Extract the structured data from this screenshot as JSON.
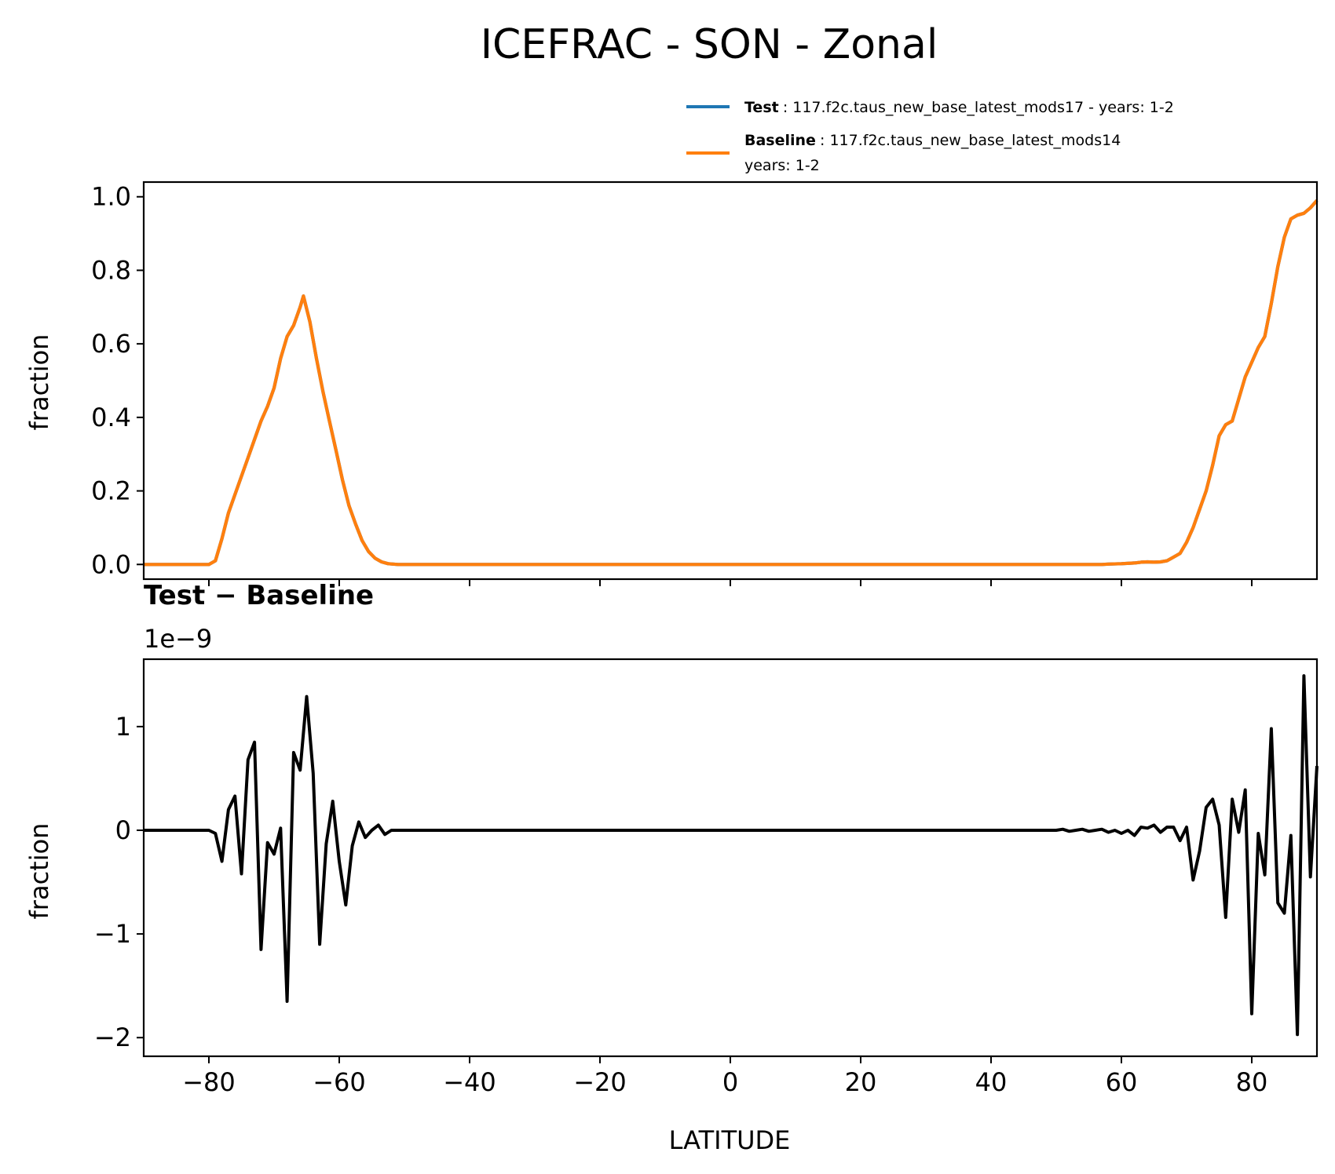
{
  "chart_data": [
    {
      "type": "line",
      "title": "ICEFRAC - SON - Zonal",
      "xlabel": "",
      "ylabel": "fraction",
      "xlim": [
        -90,
        90
      ],
      "ylim": [
        -0.04,
        1.04
      ],
      "yticks": [
        0.0,
        0.2,
        0.4,
        0.6,
        0.8,
        1.0
      ],
      "ytick_labels": [
        "0.0",
        "0.2",
        "0.4",
        "0.6",
        "0.8",
        "1.0"
      ],
      "xticks": [
        -80,
        -60,
        -40,
        -20,
        0,
        20,
        40,
        60,
        80
      ],
      "legend_position": "top-right",
      "series": [
        {
          "name": "Test",
          "legend_label": "Test",
          "legend_text": ": 117.f2c.taus_new_base_latest_mods17 - years: 1-2",
          "color": "#1f77b4",
          "x": [
            -90,
            -80,
            -79,
            -78,
            -77,
            -76,
            -75,
            -74,
            -73,
            -72,
            -71,
            -70,
            -69,
            -68,
            -67,
            -66,
            -65.5,
            -64.5,
            -63.5,
            -62.5,
            -61.5,
            -60.5,
            -59.5,
            -58.5,
            -57.5,
            -56.5,
            -55.5,
            -54.5,
            -53.5,
            -52.5,
            -51,
            0,
            50,
            57,
            58,
            60,
            62,
            63,
            64,
            65,
            66,
            67,
            68,
            69,
            70,
            71,
            72,
            73,
            74,
            75,
            76,
            77,
            78,
            79,
            80,
            81,
            82,
            83,
            84,
            85,
            86,
            87,
            88,
            89,
            90
          ],
          "values": [
            0,
            0,
            0.01,
            0.07,
            0.14,
            0.19,
            0.24,
            0.29,
            0.34,
            0.39,
            0.43,
            0.48,
            0.56,
            0.62,
            0.65,
            0.7,
            0.73,
            0.66,
            0.56,
            0.47,
            0.39,
            0.31,
            0.23,
            0.16,
            0.11,
            0.065,
            0.035,
            0.017,
            0.007,
            0.002,
            0,
            0,
            0,
            0,
            0.001,
            0.002,
            0.004,
            0.006,
            0.007,
            0.006,
            0.007,
            0.01,
            0.02,
            0.03,
            0.06,
            0.1,
            0.15,
            0.2,
            0.27,
            0.35,
            0.38,
            0.39,
            0.45,
            0.51,
            0.55,
            0.59,
            0.62,
            0.71,
            0.81,
            0.89,
            0.94,
            0.95,
            0.955,
            0.97,
            0.99
          ]
        },
        {
          "name": "Baseline",
          "legend_label": "Baseline",
          "legend_text": ": 117.f2c.taus_new_base_latest_mods14",
          "legend_text_line2": "years: 1-2",
          "color": "#ff7f0e",
          "x": [
            -90,
            -80,
            -79,
            -78,
            -77,
            -76,
            -75,
            -74,
            -73,
            -72,
            -71,
            -70,
            -69,
            -68,
            -67,
            -66,
            -65.5,
            -64.5,
            -63.5,
            -62.5,
            -61.5,
            -60.5,
            -59.5,
            -58.5,
            -57.5,
            -56.5,
            -55.5,
            -54.5,
            -53.5,
            -52.5,
            -51,
            0,
            50,
            57,
            58,
            60,
            62,
            63,
            64,
            65,
            66,
            67,
            68,
            69,
            70,
            71,
            72,
            73,
            74,
            75,
            76,
            77,
            78,
            79,
            80,
            81,
            82,
            83,
            84,
            85,
            86,
            87,
            88,
            89,
            90
          ],
          "values": [
            0,
            0,
            0.01,
            0.07,
            0.14,
            0.19,
            0.24,
            0.29,
            0.34,
            0.39,
            0.43,
            0.48,
            0.56,
            0.62,
            0.65,
            0.7,
            0.73,
            0.66,
            0.56,
            0.47,
            0.39,
            0.31,
            0.23,
            0.16,
            0.11,
            0.065,
            0.035,
            0.017,
            0.007,
            0.002,
            0,
            0,
            0,
            0,
            0.001,
            0.002,
            0.004,
            0.006,
            0.007,
            0.006,
            0.007,
            0.01,
            0.02,
            0.03,
            0.06,
            0.1,
            0.15,
            0.2,
            0.27,
            0.35,
            0.38,
            0.39,
            0.45,
            0.51,
            0.55,
            0.59,
            0.62,
            0.71,
            0.81,
            0.89,
            0.94,
            0.95,
            0.955,
            0.97,
            0.99
          ]
        }
      ]
    },
    {
      "type": "line",
      "title": "Test − Baseline",
      "offset_label": "1e−9",
      "xlabel": "LATITUDE",
      "ylabel": "fraction",
      "xlim": [
        -90,
        90
      ],
      "ylim": [
        -2.18,
        1.65
      ],
      "yticks": [
        -2,
        -1,
        0,
        1
      ],
      "ytick_labels": [
        "−2",
        "−1",
        "0",
        "1"
      ],
      "xticks": [
        -80,
        -60,
        -40,
        -20,
        0,
        20,
        40,
        60,
        80
      ],
      "xtick_labels": [
        "−80",
        "−60",
        "−40",
        "−20",
        "0",
        "20",
        "40",
        "60",
        "80"
      ],
      "series": [
        {
          "name": "Test − Baseline",
          "color": "#000000",
          "x": [
            -90,
            -80,
            -79,
            -78,
            -77,
            -76,
            -75,
            -74,
            -73,
            -72,
            -71,
            -70,
            -69,
            -68,
            -67,
            -66,
            -65,
            -64,
            -63,
            -62,
            -61,
            -60,
            -59,
            -58,
            -57,
            -56,
            -55,
            -54,
            -53,
            -52,
            -50,
            50,
            51,
            52,
            53,
            54,
            55,
            56,
            57,
            58,
            59,
            60,
            61,
            62,
            63,
            64,
            65,
            66,
            67,
            68,
            69,
            70,
            71,
            72,
            73,
            74,
            75,
            76,
            77,
            78,
            79,
            80,
            81,
            82,
            83,
            84,
            85,
            86,
            87,
            88,
            89,
            90
          ],
          "values": [
            0,
            0,
            -0.03,
            -0.3,
            0.2,
            0.33,
            -0.42,
            0.68,
            0.85,
            -1.15,
            -0.12,
            -0.23,
            0.02,
            -1.65,
            0.75,
            0.58,
            1.29,
            0.55,
            -1.1,
            -0.13,
            0.28,
            -0.3,
            -0.72,
            -0.15,
            0.08,
            -0.07,
            0.0,
            0.05,
            -0.04,
            0,
            0,
            0,
            0.01,
            -0.01,
            0.0,
            0.01,
            -0.01,
            0.0,
            0.01,
            -0.02,
            0.0,
            -0.03,
            0.0,
            -0.05,
            0.03,
            0.02,
            0.05,
            -0.02,
            0.03,
            0.03,
            -0.1,
            0.03,
            -0.48,
            -0.2,
            0.22,
            0.3,
            0.05,
            -0.84,
            0.3,
            -0.02,
            0.39,
            -1.77,
            -0.03,
            -0.43,
            0.98,
            -0.7,
            -0.8,
            -0.05,
            -1.97,
            1.49,
            -0.45,
            0.62
          ]
        }
      ]
    }
  ]
}
